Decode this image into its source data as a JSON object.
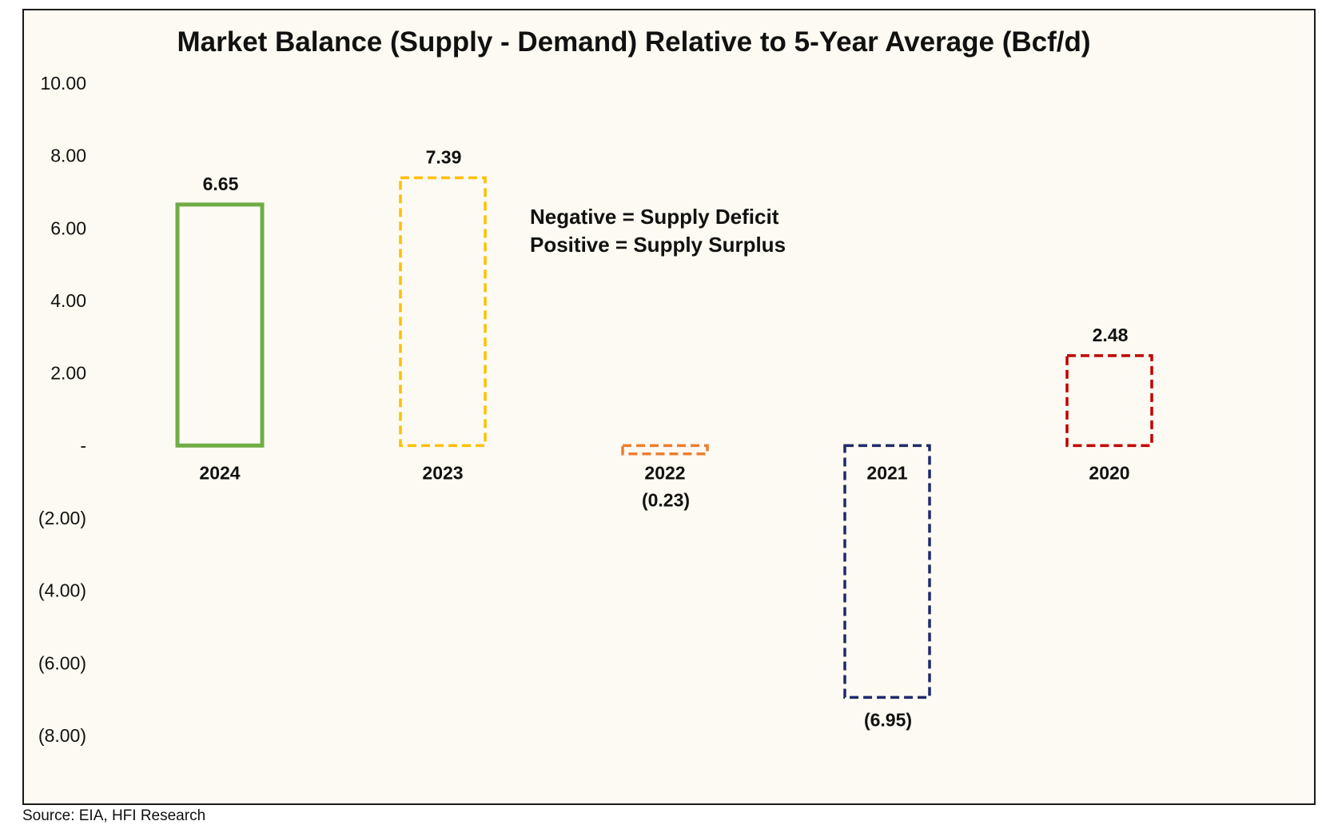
{
  "chart_data": {
    "type": "bar",
    "title": "Market Balance (Supply - Demand) Relative to 5-Year Average (Bcf/d)",
    "categories": [
      "2024",
      "2023",
      "2022",
      "2021",
      "2020"
    ],
    "values": [
      6.65,
      7.39,
      -0.23,
      -6.95,
      2.48
    ],
    "data_labels": [
      "6.65",
      "7.39",
      "(0.23)",
      "(6.95)",
      "2.48"
    ],
    "bar_colors": [
      "#70ad47",
      "#ffc000",
      "#ed7d31",
      "#1f2a6b",
      "#c00000"
    ],
    "bar_styles": [
      "solid",
      "dashed",
      "dashed",
      "dashed",
      "dashed"
    ],
    "ylim": [
      -8,
      10
    ],
    "yticks": [
      10,
      8,
      6,
      4,
      2,
      0,
      -2,
      -4,
      -6,
      -8
    ],
    "ytick_labels": [
      "10.00",
      "8.00",
      "6.00",
      "4.00",
      "2.00",
      "-",
      "(2.00)",
      "(4.00)",
      "(6.00)",
      "(8.00)"
    ],
    "xlabel": "",
    "ylabel": "",
    "annotations": [
      "Negative = Supply Deficit",
      "Positive = Supply Surplus"
    ],
    "grid": false,
    "legend": "none"
  },
  "source": "Source: EIA, HFI Research"
}
